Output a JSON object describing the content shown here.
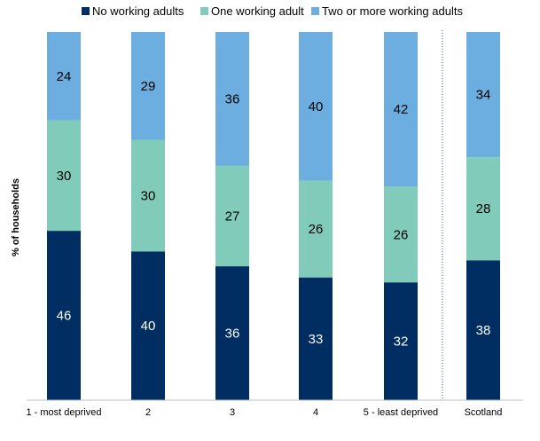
{
  "chart_data": {
    "type": "bar",
    "stacked": true,
    "percent_stacked": true,
    "title": "",
    "xlabel": "",
    "ylabel": "% of households",
    "ylim": [
      0,
      100
    ],
    "grid": false,
    "legend_position": "top",
    "categories": [
      "1 - most deprived",
      "2",
      "3",
      "4",
      "5 - least deprived",
      "Scotland"
    ],
    "series": [
      {
        "name": "No working adults",
        "color": "#002d62",
        "label_color": "#ffffff",
        "values": [
          46,
          40,
          36,
          33,
          32,
          38
        ]
      },
      {
        "name": "One working adult",
        "color": "#80cbb9",
        "label_color": "#000000",
        "values": [
          30,
          30,
          27,
          26,
          26,
          28
        ]
      },
      {
        "name": "Two or more working adults",
        "color": "#6baedf",
        "label_color": "#000000",
        "values": [
          24,
          29,
          36,
          40,
          42,
          34
        ]
      }
    ],
    "separator_before_category": "Scotland"
  }
}
